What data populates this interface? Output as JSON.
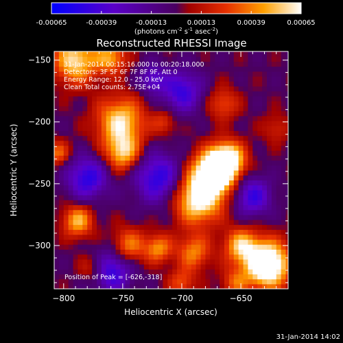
{
  "colorbar": {
    "ticks": [
      "-0.00065",
      "-0.00039",
      "-0.00013",
      "0.00013",
      "0.00039",
      "0.00065"
    ],
    "units_label": "(photons cm",
    "units_sup1": "-2",
    "units_mid": " s",
    "units_sup2": "-1",
    "units_tail": " asec",
    "units_sup3": "-2",
    "units_end": ")"
  },
  "title": "Reconstructed RHESSI Image",
  "info": {
    "line1": "31-Jan-2014 00:15:16.000 to 00:20:18.000",
    "line2": "Detectors: 3F 5F 6F 7F 8F 9F, Att 0",
    "line3": "Energy Range: 12.0 - 25.0 keV",
    "line4": "Clean    Total counts: 2.75E+04"
  },
  "peak_label": "Position of Peak = [-626,-318]",
  "footer_timestamp": "31-Jan-2014 14:02",
  "colors": {
    "background": "#000000",
    "axis": "#ffffff"
  },
  "chart_data": {
    "type": "heatmap",
    "title": "Reconstructed RHESSI Image",
    "xlabel": "Heliocentric X (arcsec)",
    "ylabel": "Heliocentric Y (arcsec)",
    "xlim": [
      -808,
      -610
    ],
    "ylim": [
      -335,
      -143
    ],
    "xticks": [
      -800,
      -750,
      -700,
      -650
    ],
    "yticks": [
      -150,
      -200,
      -250,
      -300
    ],
    "colorscale": "rhessi",
    "clim": [
      -0.00065,
      0.00065
    ],
    "peak": [
      -626,
      -318
    ],
    "sources": [
      {
        "x": -673,
        "y": -241,
        "s": 12,
        "a": 0.0009
      },
      {
        "x": -661,
        "y": -230,
        "s": 10,
        "a": 0.0007
      },
      {
        "x": -686,
        "y": -262,
        "s": 14,
        "a": 0.0007
      },
      {
        "x": -628,
        "y": -315,
        "s": 13,
        "a": 0.00095
      },
      {
        "x": -650,
        "y": -300,
        "s": 10,
        "a": 0.0005
      },
      {
        "x": -752,
        "y": -200,
        "s": 14,
        "a": 0.0006
      },
      {
        "x": -750,
        "y": -225,
        "s": 10,
        "a": 0.0005
      },
      {
        "x": -790,
        "y": -150,
        "s": 13,
        "a": 0.0006
      },
      {
        "x": -760,
        "y": -148,
        "s": 9,
        "a": 0.00045
      },
      {
        "x": -788,
        "y": -280,
        "s": 9,
        "a": 0.0005
      },
      {
        "x": -745,
        "y": -300,
        "s": 10,
        "a": 0.0004
      },
      {
        "x": -720,
        "y": -302,
        "s": 8,
        "a": 0.00042
      },
      {
        "x": -690,
        "y": -305,
        "s": 10,
        "a": 0.0004
      },
      {
        "x": -805,
        "y": -225,
        "s": 7,
        "a": 0.00035
      },
      {
        "x": -715,
        "y": -200,
        "s": 7,
        "a": 0.00025
      },
      {
        "x": -665,
        "y": -185,
        "s": 9,
        "a": 0.0003
      },
      {
        "x": -775,
        "y": -318,
        "s": 8,
        "a": 0.00028
      },
      {
        "x": -700,
        "y": -330,
        "s": 8,
        "a": 0.0003
      },
      {
        "x": -655,
        "y": -330,
        "s": 8,
        "a": 0.0003
      },
      {
        "x": -620,
        "y": -205,
        "s": 8,
        "a": 0.0002
      },
      {
        "x": -720,
        "y": -245,
        "s": 14,
        "a": -0.0005
      },
      {
        "x": -700,
        "y": -175,
        "s": 12,
        "a": -0.00045
      },
      {
        "x": -780,
        "y": -245,
        "s": 12,
        "a": -0.0005
      },
      {
        "x": -760,
        "y": -320,
        "s": 12,
        "a": -0.0005
      },
      {
        "x": -640,
        "y": -260,
        "s": 11,
        "a": -0.00045
      },
      {
        "x": -725,
        "y": -165,
        "s": 8,
        "a": -0.00035
      }
    ]
  }
}
